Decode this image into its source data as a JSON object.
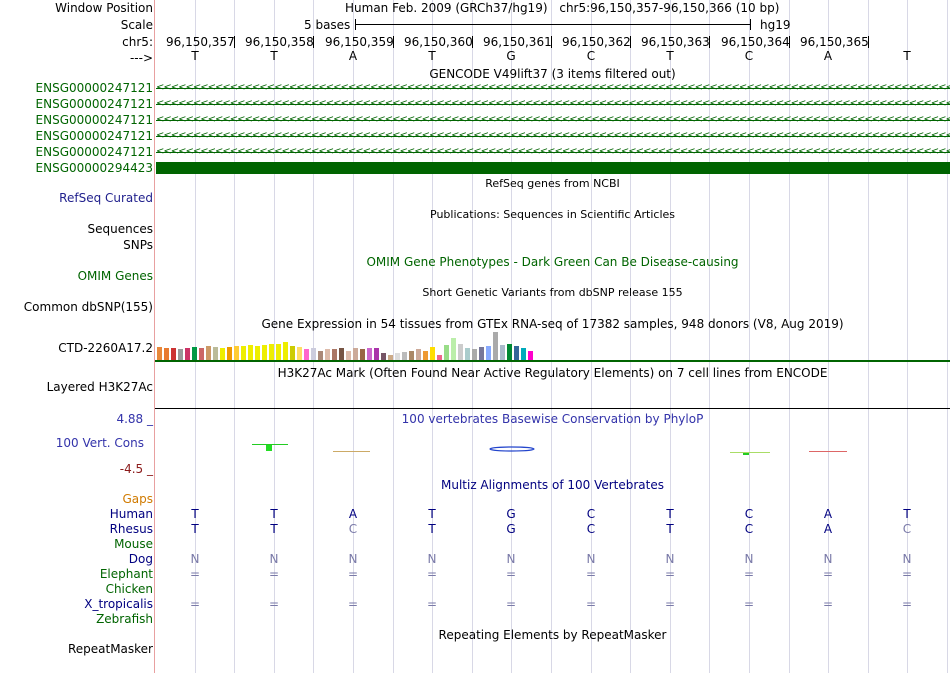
{
  "header": {
    "window_position_label": "Window Position",
    "scale_label": "Scale",
    "chrom_label": "chr5:",
    "strand_label": "--->",
    "assembly_text": "Human Feb. 2009 (GRCh37/hg19)",
    "position_text": "chr5:96,150,357-96,150,366 (10 bp)",
    "scale_text": "5 bases",
    "db_text": "hg19",
    "coordinates": [
      "96,150,357",
      "96,150,358",
      "96,150,359",
      "96,150,360",
      "96,150,361",
      "96,150,362",
      "96,150,363",
      "96,150,364",
      "96,150,365"
    ],
    "bases": [
      "T",
      "T",
      "A",
      "T",
      "G",
      "C",
      "T",
      "C",
      "A",
      "T"
    ]
  },
  "tracks": {
    "gencode_title": "GENCODE V49lift37 (3 items filtered out)",
    "gencode_items": [
      "ENSG00000247121",
      "ENSG00000247121",
      "ENSG00000247121",
      "ENSG00000247121",
      "ENSG00000247121",
      "ENSG00000294423"
    ],
    "refseq_label": "RefSeq Curated",
    "refseq_title": "RefSeq genes from NCBI",
    "pubs_title": "Publications: Sequences in Scientific Articles",
    "sequences_label": "Sequences",
    "snps_label": "SNPs",
    "omim_label": "OMIM Genes",
    "omim_title": "OMIM Gene Phenotypes - Dark Green Can Be Disease-causing",
    "dbsnp_title": "Short Genetic Variants from dbSNP release 155",
    "dbsnp_label": "Common dbSNP(155)",
    "gtex_title": "Gene Expression in 54 tissues from GTEx RNA-seq of 17382 samples, 948 donors (V8, Aug 2019)",
    "gtex_gene_label": "CTD-2260A17.2",
    "gtex_values": [
      0.55,
      0.5,
      0.5,
      0.45,
      0.5,
      0.55,
      0.5,
      0.6,
      0.55,
      0.5,
      0.55,
      0.6,
      0.6,
      0.65,
      0.6,
      0.65,
      0.7,
      0.7,
      0.75,
      0.6,
      0.55,
      0.45,
      0.5,
      0.4,
      0.45,
      0.45,
      0.5,
      0.4,
      0.5,
      0.45,
      0.5,
      0.5,
      0.3,
      0.2,
      0.3,
      0.35,
      0.4,
      0.45,
      0.4,
      0.55,
      0.2,
      0.65,
      0.95,
      0.7,
      0.5,
      0.45,
      0.55,
      0.6,
      1.2,
      0.65,
      0.7,
      0.6,
      0.5,
      0.4
    ],
    "gtex_colors": [
      "#e8883a",
      "#e87a30",
      "#cc3333",
      "#999999",
      "#cc3366",
      "#009944",
      "#cc6666",
      "#cc9966",
      "#bbbb99",
      "#eeee00",
      "#ee9900",
      "#ffcc33",
      "#eeee00",
      "#eeee00",
      "#eeee00",
      "#eeee00",
      "#eeee00",
      "#eeee00",
      "#eeee00",
      "#cccc00",
      "#ffdd66",
      "#ff66cc",
      "#ccccdd",
      "#aa8877",
      "#ddbbaa",
      "#aa7766",
      "#775544",
      "#ddbbaa",
      "#ccaa99",
      "#996644",
      "#cc66cc",
      "#aa33aa",
      "#775566",
      "#ccaa88",
      "#dddddd",
      "#bbbbbb",
      "#aa8866",
      "#ccaa99",
      "#ee9933",
      "#ffdd00",
      "#ee6688",
      "#99dd88",
      "#bbeeaa",
      "#cccccc",
      "#aacccc",
      "#aaaaaa",
      "#777799",
      "#88aaff",
      "#aaaaaa",
      "#aabbcc",
      "#008833",
      "#336699",
      "#00aabb",
      "#ff00cc"
    ],
    "h3k27ac_title": "H3K27Ac Mark (Often Found Near Active Regulatory Elements) on 7 cell lines from ENCODE",
    "h3k27ac_label": "Layered H3K27Ac",
    "cons_max": "4.88 _",
    "cons_min": "-4.5 _",
    "cons_title": "100 vertebrates Basewise Conservation by PhyloP",
    "cons_label": "100 Vert. Cons",
    "multiz_title": "Multiz Alignments of 100 Vertebrates",
    "gaps_label": "Gaps",
    "species": [
      {
        "name": "Human",
        "bases": [
          "T",
          "T",
          "A",
          "T",
          "G",
          "C",
          "T",
          "C",
          "A",
          "T"
        ],
        "color": "#000080"
      },
      {
        "name": "Rhesus",
        "bases": [
          "T",
          "T",
          "C",
          "T",
          "G",
          "C",
          "T",
          "C",
          "A",
          "C"
        ],
        "color": "#000080"
      },
      {
        "name": "Mouse",
        "bases": [],
        "color": "#006400"
      },
      {
        "name": "Dog",
        "bases": [
          "N",
          "N",
          "N",
          "N",
          "N",
          "N",
          "N",
          "N",
          "N",
          "N"
        ],
        "color": "#000080"
      },
      {
        "name": "Elephant",
        "bases": [
          "=",
          "=",
          "=",
          "=",
          "=",
          "=",
          "=",
          "=",
          "=",
          "="
        ],
        "color": "#006400"
      },
      {
        "name": "Chicken",
        "bases": [],
        "color": "#006400"
      },
      {
        "name": "X_tropicalis",
        "bases": [
          "=",
          "=",
          "=",
          "=",
          "=",
          "=",
          "=",
          "=",
          "=",
          "="
        ],
        "color": "#000080"
      },
      {
        "name": "Zebrafish",
        "bases": [],
        "color": "#006400"
      }
    ],
    "rmsk_title": "Repeating Elements by RepeatMasker",
    "rmsk_label": "RepeatMasker"
  }
}
